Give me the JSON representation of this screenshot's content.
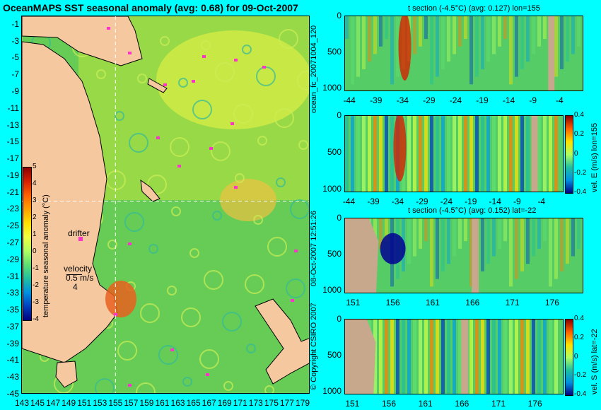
{
  "map": {
    "title": "OceanMAPS SST seasonal anomaly (avg: 0.68) for 09-Oct-2007",
    "lat_ticks": [
      "-1",
      "-3",
      "-5",
      "-7",
      "-9",
      "-11",
      "-13",
      "-15",
      "-17",
      "-19",
      "-21",
      "-23",
      "-25",
      "-27",
      "-29",
      "-31",
      "-33",
      "-35",
      "-37",
      "-39",
      "-41",
      "-43",
      "-45"
    ],
    "lon_ticks": [
      "143",
      "145",
      "147",
      "149",
      "151",
      "153",
      "155",
      "157",
      "159",
      "161",
      "163",
      "165",
      "167",
      "169",
      "171",
      "173",
      "175",
      "177",
      "179"
    ],
    "colorbar_ticks": [
      "5",
      "4",
      "3",
      "2",
      "1",
      "0",
      "-1",
      "-2",
      "-3",
      "-4"
    ],
    "colorbar_label": "temperature seasonal anomaly (°C)",
    "drifter_label": "drifter",
    "velocity_label": "velocity",
    "velocity_value": "0.5 m/s",
    "velocity_scale": "4",
    "crosshair_lon": 155,
    "crosshair_lat": -22
  },
  "panels": [
    {
      "title": "t section (-4.5°C) (avg: 0.127) lon=155",
      "x_ticks": [
        "-44",
        "-39",
        "-34",
        "-29",
        "-24",
        "-19",
        "-14",
        "-9",
        "-4"
      ],
      "y_ticks": [
        "0",
        "500",
        "1000"
      ],
      "has_colorbar": false
    },
    {
      "title": "",
      "x_ticks": [
        "-44",
        "-39",
        "-34",
        "-29",
        "-24",
        "-19",
        "-14",
        "-9",
        "-4"
      ],
      "y_ticks": [
        "0",
        "500",
        "1000"
      ],
      "has_colorbar": true,
      "cb_ticks": [
        "0.4",
        "0.2",
        "0",
        "-0.2",
        "-0.4"
      ],
      "cb_label": "vel. E (m/s) lon=155"
    },
    {
      "title": "t section (-4.5°C) (avg: 0.152) lat=-22",
      "x_ticks": [
        "151",
        "156",
        "161",
        "166",
        "171",
        "176"
      ],
      "y_ticks": [
        "0",
        "500",
        "1000"
      ],
      "has_colorbar": false
    },
    {
      "title": "",
      "x_ticks": [
        "151",
        "156",
        "161",
        "166",
        "171",
        "176"
      ],
      "y_ticks": [
        "0",
        "500",
        "1000"
      ],
      "has_colorbar": true,
      "cb_ticks": [
        "0.4",
        "0.2",
        "0",
        "-0.2",
        "-0.4"
      ],
      "cb_label": "vel. S (m/s) lat=-22"
    }
  ],
  "side_text": {
    "forecast_id": "ocean_fc_20071004_120",
    "timestamp": "08-Oct-2007 12:51:26",
    "copyright": "© Copyright CSIRO 2007"
  },
  "colors": {
    "background": "#00FFFF",
    "land": "#F5C8A0",
    "ocean": "#66CC55",
    "section_land": "#C8A88C"
  },
  "chart_data": [
    {
      "type": "heatmap",
      "title": "OceanMAPS SST seasonal anomaly (avg: 0.68) for 09-Oct-2007",
      "xlim": [
        143,
        180
      ],
      "ylim": [
        -45,
        0
      ],
      "zlim": [
        -4,
        5
      ],
      "zlabel": "temperature seasonal anomaly (°C)"
    },
    {
      "type": "heatmap",
      "title": "t section (-4.5°C) (avg: 0.127) lon=155",
      "xlim": [
        -45,
        0
      ],
      "ylim": [
        1050,
        0
      ]
    },
    {
      "type": "heatmap",
      "xlim": [
        -45,
        0
      ],
      "ylim": [
        1050,
        0
      ],
      "zlim": [
        -0.4,
        0.4
      ],
      "zlabel": "vel. E (m/s) lon=155"
    },
    {
      "type": "heatmap",
      "title": "t section (-4.5°C) (avg: 0.152) lat=-22",
      "xlim": [
        150,
        180
      ],
      "ylim": [
        1050,
        0
      ]
    },
    {
      "type": "heatmap",
      "xlim": [
        150,
        180
      ],
      "ylim": [
        1050,
        0
      ],
      "zlim": [
        -0.4,
        0.4
      ],
      "zlabel": "vel. S (m/s) lat=-22"
    }
  ]
}
